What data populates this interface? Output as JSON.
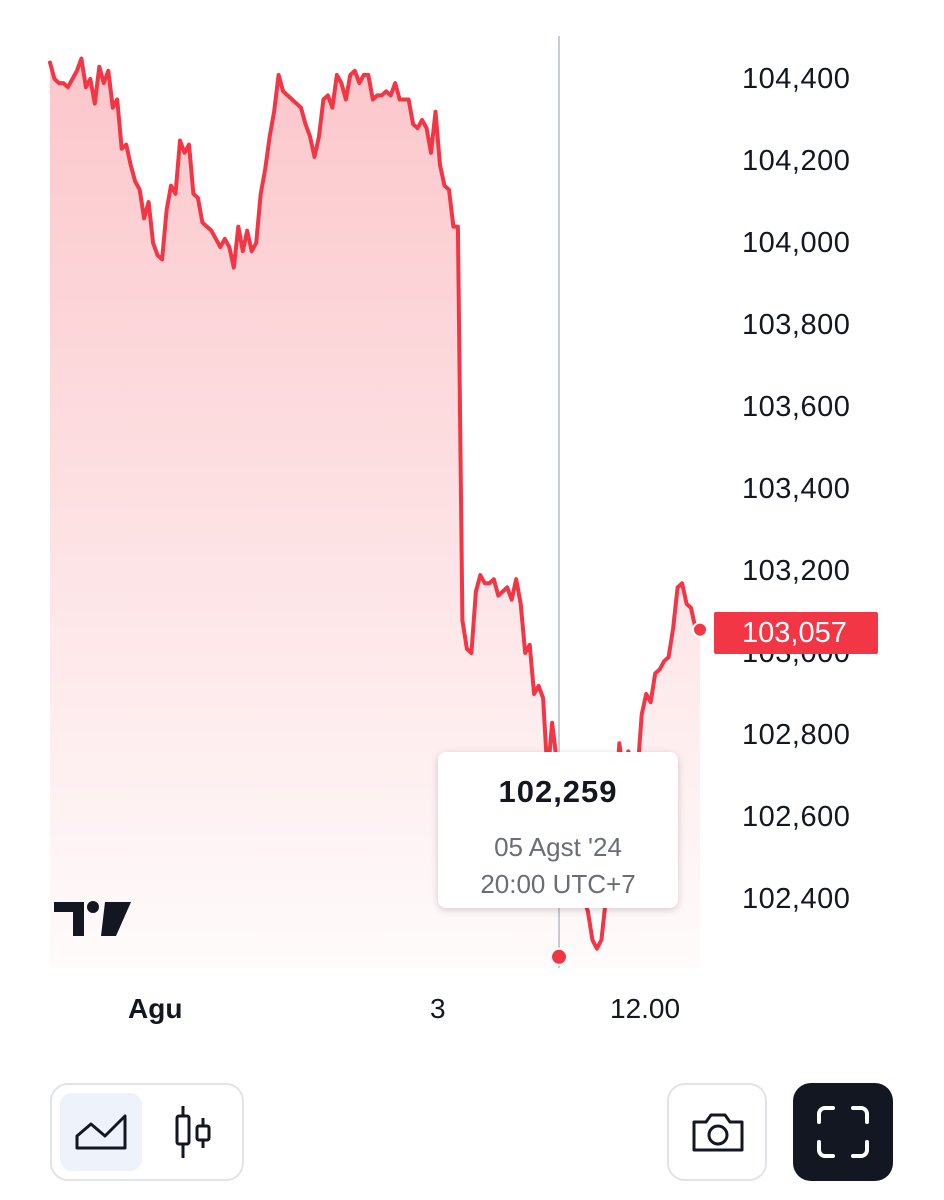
{
  "chart_data": {
    "type": "area",
    "y_ticks": [
      "104,400",
      "104,200",
      "104,000",
      "103,800",
      "103,600",
      "103,400",
      "103,200",
      "103,000",
      "102,800",
      "102,600",
      "102,400"
    ],
    "y_tick_values": [
      104400,
      104200,
      104000,
      103800,
      103600,
      103400,
      103200,
      103000,
      102800,
      102600,
      102400
    ],
    "ylim": [
      102200,
      104520
    ],
    "x_ticks": [
      {
        "label": "Agu",
        "bold": true
      },
      {
        "label": "3",
        "bold": false
      },
      {
        "label": "12.00",
        "bold": false
      }
    ],
    "values": [
      104440,
      104400,
      104390,
      104390,
      104380,
      104400,
      104420,
      104450,
      104380,
      104400,
      104340,
      104430,
      104390,
      104420,
      104330,
      104350,
      104230,
      104240,
      104190,
      104150,
      104130,
      104060,
      104100,
      104000,
      103970,
      103960,
      104080,
      104140,
      104120,
      104250,
      104220,
      104240,
      104120,
      104110,
      104050,
      104040,
      104030,
      104010,
      103990,
      104010,
      103990,
      103940,
      104040,
      103980,
      104030,
      103980,
      104000,
      104120,
      104180,
      104260,
      104320,
      104410,
      104370,
      104360,
      104350,
      104340,
      104330,
      104290,
      104260,
      104210,
      104260,
      104350,
      104360,
      104330,
      104410,
      104390,
      104350,
      104410,
      104420,
      104390,
      104410,
      104410,
      104350,
      104360,
      104360,
      104370,
      104360,
      104390,
      104350,
      104350,
      104350,
      104290,
      104280,
      104300,
      104280,
      104220,
      104320,
      104190,
      104140,
      104130,
      104040,
      104040,
      103080,
      103010,
      103000,
      103150,
      103190,
      103170,
      103170,
      103180,
      103140,
      103150,
      103160,
      103130,
      103180,
      103120,
      103000,
      103020,
      102900,
      102920,
      102890,
      102700,
      102830,
      102740,
      102700,
      102600,
      102540,
      102500,
      102670,
      102400,
      102370,
      102300,
      102279,
      102300,
      102400,
      102500,
      102600,
      102780,
      102700,
      102760,
      102720,
      102700,
      102850,
      102900,
      102880,
      102950,
      102960,
      102980,
      102990,
      103060,
      103160,
      103170,
      103120,
      103110,
      103060,
      103057
    ],
    "last_value": "103,057",
    "last_value_color": "#f23645",
    "line_color": "#f23645",
    "fill_color": "#f23645",
    "grid": false,
    "crosshair": true,
    "title": "",
    "xlabel": "",
    "ylabel": ""
  },
  "tooltip": {
    "value": "102,259",
    "date": "05 Agst '24",
    "time": "20:00 UTC+7"
  },
  "toolbar": {
    "area_icon": "area-chart-icon",
    "candle_icon": "candlestick-icon",
    "camera_icon": "camera-icon",
    "fullscreen_icon": "fullscreen-icon",
    "logo": "tradingview-logo"
  }
}
